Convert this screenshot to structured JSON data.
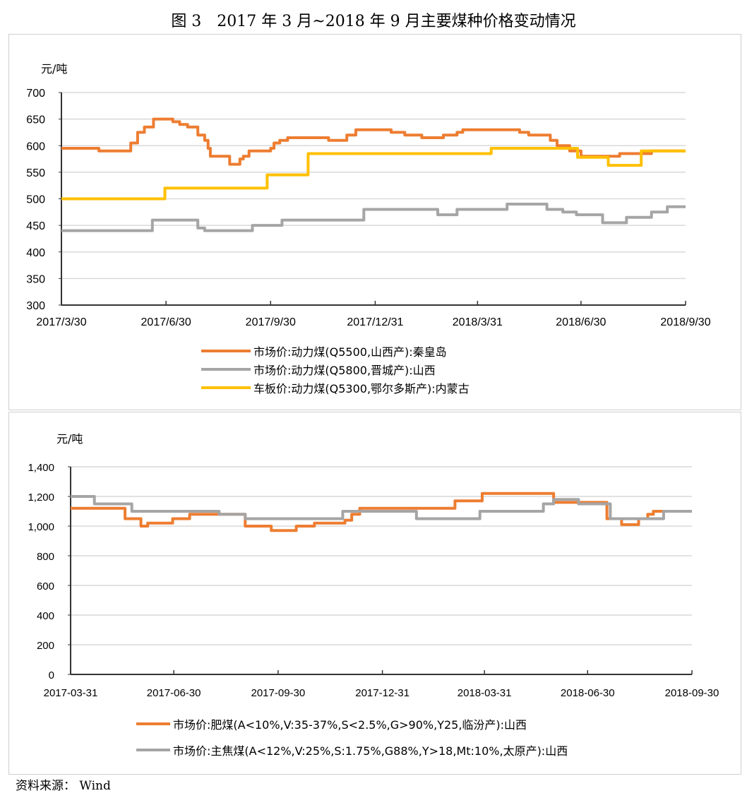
{
  "title": "图 3　2017 年 3 月~2018 年 9 月主要煤种价格变动情况",
  "source": "资料来源：  Wind",
  "chart_data": [
    {
      "type": "line",
      "step": true,
      "ylabel": "元/吨",
      "ylim": [
        300,
        700
      ],
      "yticks": [
        "300",
        "350",
        "400",
        "450",
        "500",
        "550",
        "600",
        "650",
        "700"
      ],
      "xlim": [
        "2017-03-30",
        "2018-09-30"
      ],
      "xticks": [
        {
          "date": "2017-03-30",
          "label": "2017/3/30"
        },
        {
          "date": "2017-06-30",
          "label": "2017/6/30"
        },
        {
          "date": "2017-09-30",
          "label": "2017/9/30"
        },
        {
          "date": "2017-12-31",
          "label": "2017/12/31"
        },
        {
          "date": "2018-03-31",
          "label": "2018/3/31"
        },
        {
          "date": "2018-06-30",
          "label": "2018/6/30"
        },
        {
          "date": "2018-09-30",
          "label": "2018/9/30"
        }
      ],
      "grid": true,
      "legend": "bottom",
      "series": [
        {
          "name": "市场价:动力煤(Q5500,山西产):秦皇岛",
          "color": "#ED7D31",
          "points": [
            [
              "2017-03-30",
              595
            ],
            [
              "2017-05-02",
              590
            ],
            [
              "2017-05-30",
              605
            ],
            [
              "2017-06-05",
              625
            ],
            [
              "2017-06-11",
              635
            ],
            [
              "2017-06-19",
              650
            ],
            [
              "2017-07-06",
              645
            ],
            [
              "2017-07-12",
              640
            ],
            [
              "2017-07-19",
              635
            ],
            [
              "2017-07-28",
              620
            ],
            [
              "2017-08-03",
              610
            ],
            [
              "2017-08-06",
              595
            ],
            [
              "2017-08-08",
              580
            ],
            [
              "2017-08-25",
              565
            ],
            [
              "2017-09-03",
              575
            ],
            [
              "2017-09-06",
              580
            ],
            [
              "2017-09-11",
              590
            ],
            [
              "2017-09-30",
              595
            ],
            [
              "2017-10-03",
              605
            ],
            [
              "2017-10-08",
              610
            ],
            [
              "2017-10-15",
              615
            ],
            [
              "2017-11-20",
              610
            ],
            [
              "2017-12-06",
              620
            ],
            [
              "2017-12-14",
              630
            ],
            [
              "2018-01-14",
              625
            ],
            [
              "2018-01-26",
              620
            ],
            [
              "2018-02-10",
              615
            ],
            [
              "2018-03-01",
              620
            ],
            [
              "2018-03-13",
              625
            ],
            [
              "2018-03-18",
              630
            ],
            [
              "2018-05-07",
              625
            ],
            [
              "2018-05-15",
              620
            ],
            [
              "2018-06-03",
              610
            ],
            [
              "2018-06-09",
              600
            ],
            [
              "2018-06-20",
              590
            ],
            [
              "2018-06-30",
              580
            ],
            [
              "2018-08-03",
              585
            ],
            [
              "2018-08-31",
              590
            ],
            [
              "2018-09-30",
              590
            ]
          ]
        },
        {
          "name": "市场价:动力煤(Q5800,晋城产):山西",
          "color": "#A5A5A5",
          "points": [
            [
              "2017-03-30",
              440
            ],
            [
              "2017-06-18",
              460
            ],
            [
              "2017-07-28",
              445
            ],
            [
              "2017-08-03",
              440
            ],
            [
              "2017-09-14",
              450
            ],
            [
              "2017-10-10",
              460
            ],
            [
              "2017-12-21",
              480
            ],
            [
              "2018-02-24",
              470
            ],
            [
              "2018-03-13",
              480
            ],
            [
              "2018-04-26",
              490
            ],
            [
              "2018-05-31",
              480
            ],
            [
              "2018-06-14",
              475
            ],
            [
              "2018-06-26",
              470
            ],
            [
              "2018-07-19",
              455
            ],
            [
              "2018-08-09",
              465
            ],
            [
              "2018-08-31",
              475
            ],
            [
              "2018-09-14",
              485
            ],
            [
              "2018-09-30",
              485
            ]
          ]
        },
        {
          "name": "车板价:动力煤(Q5300,鄂尔多斯产):内蒙古",
          "color": "#FFC000",
          "points": [
            [
              "2017-03-30",
              500
            ],
            [
              "2017-06-29",
              520
            ],
            [
              "2017-09-27",
              545
            ],
            [
              "2017-11-02",
              585
            ],
            [
              "2018-04-12",
              595
            ],
            [
              "2018-06-27",
              578
            ],
            [
              "2018-07-24",
              563
            ],
            [
              "2018-08-22",
              590
            ],
            [
              "2018-09-30",
              590
            ]
          ]
        }
      ]
    },
    {
      "type": "line",
      "step": true,
      "ylabel": "元/吨",
      "ylim": [
        0,
        1400
      ],
      "yticks": [
        "0",
        "200",
        "400",
        "600",
        "800",
        "1,000",
        "1,200",
        "1,400"
      ],
      "xlim": [
        "2017-03-31",
        "2018-09-30"
      ],
      "xticks": [
        {
          "date": "2017-03-31",
          "label": "2017-03-31"
        },
        {
          "date": "2017-06-30",
          "label": "2017-06-30"
        },
        {
          "date": "2017-09-30",
          "label": "2017-09-30"
        },
        {
          "date": "2017-12-31",
          "label": "2017-12-31"
        },
        {
          "date": "2018-03-31",
          "label": "2018-03-31"
        },
        {
          "date": "2018-06-30",
          "label": "2018-06-30"
        },
        {
          "date": "2018-09-30",
          "label": "2018-09-30"
        }
      ],
      "grid": true,
      "legend": "bottom",
      "series": [
        {
          "name": "市场价:肥煤(A<10%,V:35-37%,S<2.5%,G>90%,Y25,临汾产):山西",
          "color": "#ED7D31",
          "points": [
            [
              "2017-03-31",
              1120
            ],
            [
              "2017-05-18",
              1050
            ],
            [
              "2017-06-01",
              1000
            ],
            [
              "2017-06-07",
              1020
            ],
            [
              "2017-06-29",
              1050
            ],
            [
              "2017-07-14",
              1080
            ],
            [
              "2017-09-01",
              1000
            ],
            [
              "2017-09-24",
              970
            ],
            [
              "2017-10-16",
              1000
            ],
            [
              "2017-11-01",
              1020
            ],
            [
              "2017-11-28",
              1040
            ],
            [
              "2017-12-04",
              1080
            ],
            [
              "2017-12-11",
              1120
            ],
            [
              "2018-03-05",
              1170
            ],
            [
              "2018-03-29",
              1220
            ],
            [
              "2018-05-31",
              1160
            ],
            [
              "2018-07-17",
              1050
            ],
            [
              "2018-07-30",
              1010
            ],
            [
              "2018-08-14",
              1050
            ],
            [
              "2018-08-22",
              1080
            ],
            [
              "2018-08-27",
              1100
            ],
            [
              "2018-09-30",
              1100
            ]
          ]
        },
        {
          "name": "市场价:主焦煤(A<12%,V:25%,S:1.75%,G88%,Y>18,Mt:10%,太原产):山西",
          "color": "#A5A5A5",
          "points": [
            [
              "2017-03-31",
              1200
            ],
            [
              "2017-04-21",
              1150
            ],
            [
              "2017-05-24",
              1100
            ],
            [
              "2017-08-09",
              1080
            ],
            [
              "2017-09-01",
              1050
            ],
            [
              "2017-11-26",
              1100
            ],
            [
              "2018-01-30",
              1050
            ],
            [
              "2018-03-27",
              1100
            ],
            [
              "2018-05-22",
              1150
            ],
            [
              "2018-05-31",
              1180
            ],
            [
              "2018-06-22",
              1150
            ],
            [
              "2018-07-20",
              1050
            ],
            [
              "2018-09-05",
              1100
            ],
            [
              "2018-09-30",
              1100
            ]
          ]
        }
      ]
    }
  ]
}
